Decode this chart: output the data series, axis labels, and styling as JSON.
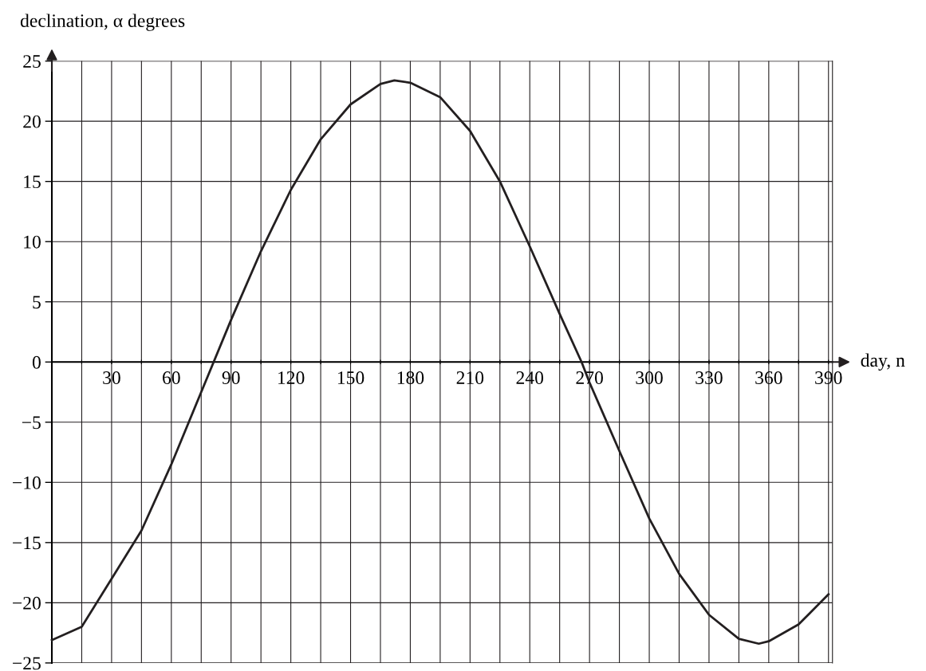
{
  "chart_data": {
    "type": "line",
    "xlabel": "day, n",
    "ylabel": "declination, α degrees",
    "x": [
      0,
      15,
      30,
      45,
      60,
      75,
      90,
      105,
      120,
      135,
      150,
      165,
      172,
      180,
      195,
      210,
      225,
      240,
      255,
      266,
      270,
      285,
      300,
      315,
      330,
      345,
      355,
      360,
      375,
      390
    ],
    "series": [
      {
        "color": "#231f20",
        "values": [
          -23.1,
          -22,
          -18,
          -14,
          -8.5,
          -2.5,
          3.5,
          9.2,
          14.3,
          18.5,
          21.4,
          23.1,
          23.4,
          23.2,
          22,
          19.2,
          15,
          9.6,
          4,
          0,
          -1.7,
          -7.4,
          -13,
          -17.6,
          -21,
          -23,
          -23.4,
          -23.2,
          -21.8,
          -19.3
        ]
      }
    ],
    "xlim": [
      0,
      392
    ],
    "ylim": [
      -25,
      25
    ],
    "xticks": [
      {
        "value": 15,
        "label": null
      },
      30,
      {
        "value": 45,
        "label": null
      },
      60,
      {
        "value": 75,
        "label": null
      },
      90,
      {
        "value": 105,
        "label": null
      },
      120,
      {
        "value": 135,
        "label": null
      },
      150,
      {
        "value": 165,
        "label": null
      },
      180,
      {
        "value": 195,
        "label": null
      },
      210,
      {
        "value": 225,
        "label": null
      },
      240,
      {
        "value": 255,
        "label": null
      },
      270,
      {
        "value": 285,
        "label": null
      },
      300,
      {
        "value": 315,
        "label": null
      },
      330,
      {
        "value": 345,
        "label": null
      },
      360,
      {
        "value": 375,
        "label": null
      },
      390
    ],
    "yticks": [
      {
        "value": -25,
        "label": "−25"
      },
      {
        "value": -20,
        "label": "−20"
      },
      {
        "value": -15,
        "label": "−15"
      },
      {
        "value": -10,
        "label": "−10"
      },
      {
        "value": -5,
        "label": "−5"
      },
      0,
      5,
      10,
      15,
      20,
      25
    ],
    "grid": true,
    "marker": "none",
    "line_style": "solid"
  }
}
